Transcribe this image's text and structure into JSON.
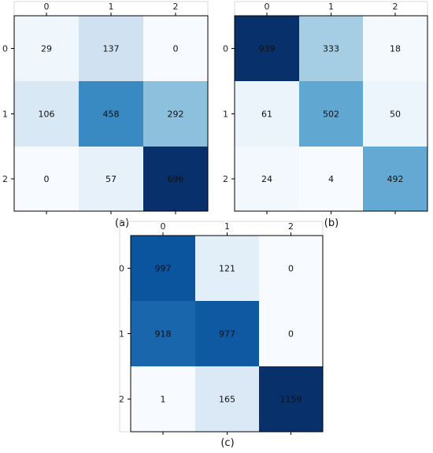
{
  "chart_data": [
    {
      "type": "heatmap",
      "panel_label": "(a)",
      "x_tick_labels": [
        "0",
        "1",
        "2"
      ],
      "y_tick_labels": [
        "0",
        "1",
        "2"
      ],
      "values": [
        [
          29,
          137,
          0
        ],
        [
          106,
          458,
          292
        ],
        [
          0,
          57,
          696
        ]
      ],
      "colormap": "Blues"
    },
    {
      "type": "heatmap",
      "panel_label": "(b)",
      "x_tick_labels": [
        "0",
        "1",
        "2"
      ],
      "y_tick_labels": [
        "0",
        "1",
        "2"
      ],
      "values": [
        [
          939,
          333,
          18
        ],
        [
          61,
          502,
          50
        ],
        [
          24,
          4,
          492
        ]
      ],
      "colormap": "Blues"
    },
    {
      "type": "heatmap",
      "panel_label": "(c)",
      "x_tick_labels": [
        "0",
        "1",
        "2"
      ],
      "y_tick_labels": [
        "0",
        "1",
        "2"
      ],
      "values": [
        [
          997,
          121,
          0
        ],
        [
          918,
          977,
          0
        ],
        [
          1,
          165,
          1159
        ]
      ],
      "colormap": "Blues"
    }
  ],
  "colors": {
    "blues_light": "#f7fbff",
    "blues_dark": "#08306b",
    "frame": "#000000"
  }
}
